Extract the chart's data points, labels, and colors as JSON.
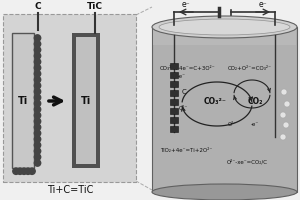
{
  "bg_color": "#f0f0f0",
  "left_panel_bg": "#d4d4d4",
  "left_panel_edge": "#999999",
  "ti_left_fill": "#c8c8c8",
  "ti_left_edge": "#555555",
  "circle_color": "#444444",
  "tic_outer_fill": "#505050",
  "tic_inner_fill": "#c0c0c0",
  "arrow_color": "#111111",
  "text_color": "#111111",
  "wire_color": "#333333",
  "tank_body_fill": "#b0b0b0",
  "tank_top_fill": "#d0d0d0",
  "tank_rim_fill": "#c8c8c8",
  "tank_inner_fill": "#c4c4c4",
  "electrode_fill": "#303030",
  "bubble_color": "#e4e4e4",
  "eq_text_color": "#111111",
  "left_label_C": "C",
  "left_label_TiC": "TiC",
  "left_label_Ti": "Ti",
  "left_eq": "Ti+C=TiC",
  "Ti_label": "Ti"
}
